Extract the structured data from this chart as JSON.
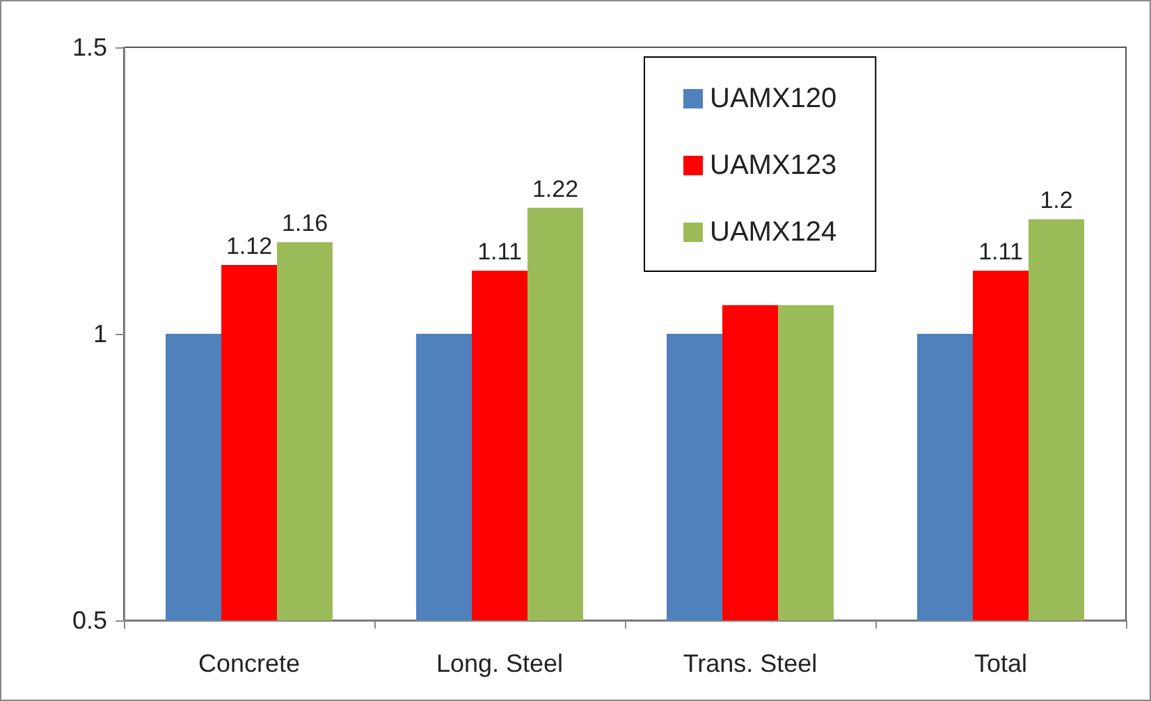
{
  "chart_data": {
    "type": "bar",
    "categories": [
      "Concrete",
      "Long. Steel",
      "Trans. Steel",
      "Total"
    ],
    "series": [
      {
        "name": "UAMX120",
        "color": "#4f81bd",
        "values": [
          1,
          1,
          1,
          1
        ]
      },
      {
        "name": "UAMX123",
        "color": "#ff0000",
        "values": [
          1.12,
          1.11,
          1.05,
          1.11
        ],
        "value_labels": [
          "1.12",
          "1.11",
          null,
          "1.11"
        ]
      },
      {
        "name": "UAMX124",
        "color": "#9bbb59",
        "values": [
          1.16,
          1.22,
          1.05,
          1.2
        ],
        "value_labels": [
          "1.16",
          "1.22",
          null,
          "1.2"
        ]
      }
    ],
    "ylim": [
      0.5,
      1.5
    ],
    "yticks": [
      0.5,
      1,
      1.5
    ],
    "grid": false,
    "legend": "top"
  }
}
